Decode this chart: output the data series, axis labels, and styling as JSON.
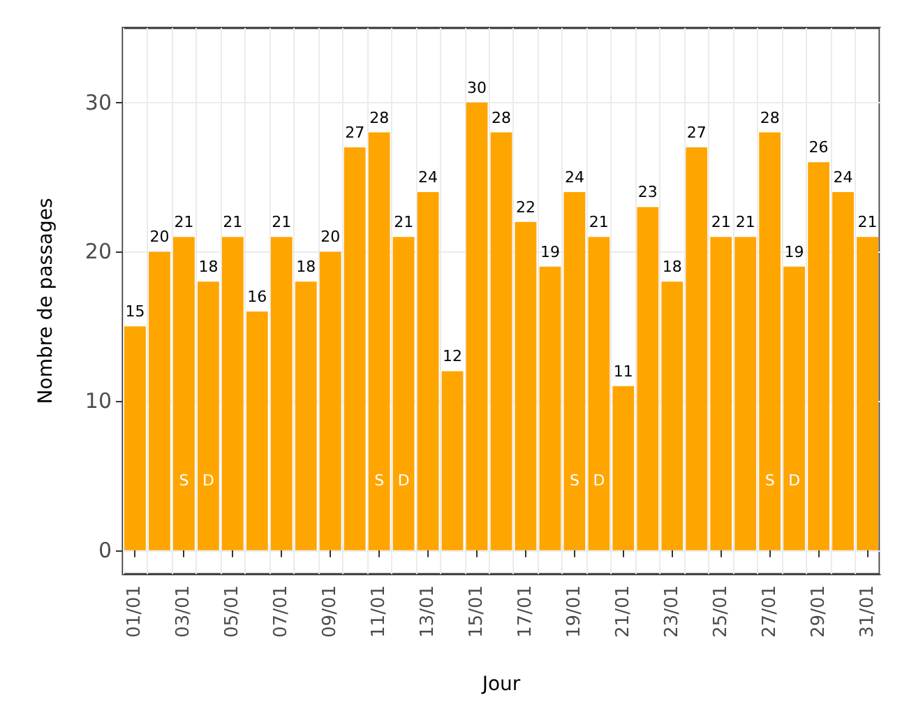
{
  "chart_data": {
    "type": "bar",
    "xlabel": "Jour",
    "ylabel": "Nombre de passages",
    "categories": [
      "01/01",
      null,
      "03/01",
      null,
      "05/01",
      null,
      "07/01",
      null,
      "09/01",
      null,
      "11/01",
      null,
      "13/01",
      null,
      "15/01",
      null,
      "17/01",
      null,
      "19/01",
      null,
      "21/01",
      null,
      "23/01",
      null,
      "25/01",
      null,
      "27/01",
      null,
      "29/01",
      null,
      "31/01"
    ],
    "values": [
      15,
      20,
      21,
      18,
      21,
      16,
      21,
      18,
      20,
      27,
      28,
      21,
      24,
      12,
      30,
      28,
      22,
      19,
      24,
      21,
      11,
      23,
      18,
      27,
      21,
      21,
      28,
      19,
      26,
      24,
      21
    ],
    "color": "#ffa500",
    "data_labels": true,
    "ylim": [
      -1.6,
      35
    ],
    "yticks": [
      0,
      10,
      20,
      30
    ],
    "grid": true,
    "annotations": [
      "S",
      "D",
      "S",
      "D",
      "S",
      "D",
      "S",
      "D"
    ]
  }
}
